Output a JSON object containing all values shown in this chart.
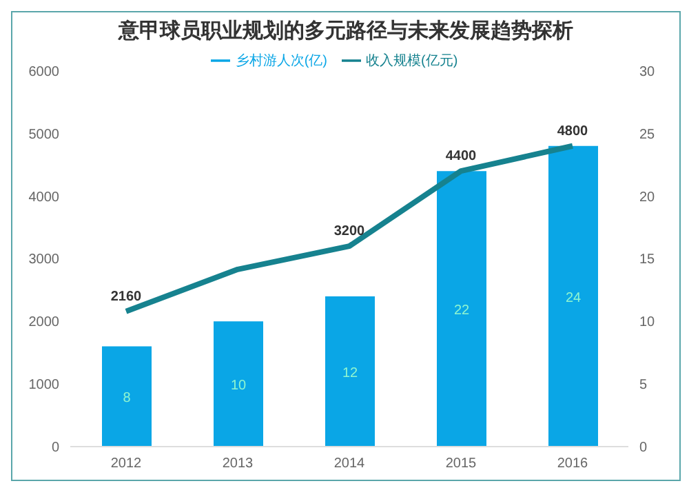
{
  "chart_data": {
    "type": "bar",
    "title": "意甲球员职业规划的多元路径与未来发展趋势探析",
    "categories": [
      "2012",
      "2013",
      "2014",
      "2015",
      "2016"
    ],
    "series": [
      {
        "name": "乡村游人次(亿)",
        "axis": "y2",
        "color": "#0aa6e6",
        "values": [
          8,
          10,
          12,
          22,
          24
        ],
        "value_labels": [
          "8",
          "10",
          "12",
          "22",
          "24"
        ]
      },
      {
        "name": "收入规模(亿元)",
        "type": "line",
        "color": "#16828f",
        "values": [
          2160,
          2830,
          3200,
          4400,
          4800
        ],
        "value_labels": [
          "2160",
          null,
          "3200",
          "4400",
          "4800"
        ]
      }
    ],
    "ylim": [
      0,
      6000
    ],
    "yticks": [
      0,
      1000,
      2000,
      3000,
      4000,
      5000,
      6000
    ],
    "y2lim": [
      0,
      30
    ],
    "y2ticks": [
      0,
      5,
      10,
      15,
      20,
      25,
      30
    ],
    "legend": "top",
    "marker": "none"
  }
}
